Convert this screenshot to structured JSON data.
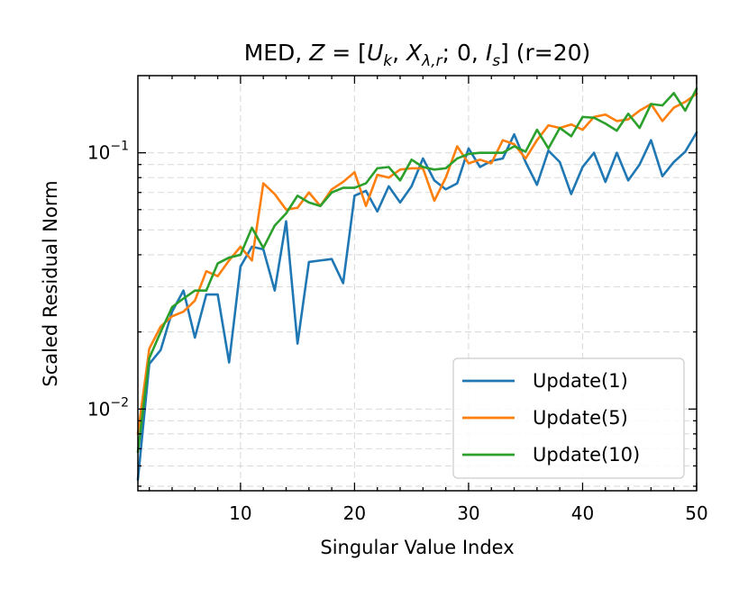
{
  "chart_data": {
    "type": "line",
    "title": "MED, Z = [U_k, X_{λ,r}; 0, I_s] (r=20)",
    "title_parts": {
      "prefix": "MED, ",
      "z": "Z",
      "equals": " = [",
      "u": "U",
      "u_sub": "k",
      "comma1": ", ",
      "x": "X",
      "x_sub": "λ,r",
      "semi": "; 0, ",
      "i": "I",
      "i_sub": "s",
      "suffix": "] (r=20)"
    },
    "xlabel": "Singular Value Index",
    "ylabel": "Scaled Residual Norm",
    "xlim": [
      1,
      50
    ],
    "ylim": [
      0.0048,
      0.2
    ],
    "yscale": "log",
    "xticks": [
      10,
      20,
      30,
      40,
      50
    ],
    "xtick_labels": [
      "10",
      "20",
      "30",
      "40",
      "50"
    ],
    "yticks": [
      {
        "value": 0.01,
        "base": "10",
        "exp": "−2"
      },
      {
        "value": 0.1,
        "base": "10",
        "exp": "−1"
      }
    ],
    "grid": true,
    "legend": "lower-right",
    "x": [
      1,
      2,
      3,
      4,
      5,
      6,
      7,
      8,
      9,
      10,
      11,
      12,
      13,
      14,
      15,
      16,
      17,
      18,
      19,
      20,
      21,
      22,
      23,
      24,
      25,
      26,
      27,
      28,
      29,
      30,
      31,
      32,
      33,
      34,
      35,
      36,
      37,
      38,
      39,
      40,
      41,
      42,
      43,
      44,
      45,
      46,
      47,
      48,
      49,
      50
    ],
    "series": [
      {
        "name": "Update(1)",
        "color": "#1f77b4",
        "values": [
          0.0053,
          0.015,
          0.017,
          0.024,
          0.029,
          0.019,
          0.028,
          0.028,
          0.0152,
          0.036,
          0.043,
          0.042,
          0.029,
          0.054,
          0.018,
          0.0375,
          0.038,
          0.0385,
          0.031,
          0.068,
          0.071,
          0.059,
          0.074,
          0.064,
          0.074,
          0.095,
          0.078,
          0.072,
          0.076,
          0.104,
          0.088,
          0.093,
          0.095,
          0.118,
          0.092,
          0.075,
          0.102,
          0.092,
          0.069,
          0.088,
          0.1,
          0.077,
          0.1,
          0.078,
          0.09,
          0.112,
          0.081,
          0.092,
          0.101,
          0.12
        ]
      },
      {
        "name": "Update(5)",
        "color": "#ff7f0e",
        "values": [
          0.008,
          0.0172,
          0.021,
          0.023,
          0.024,
          0.0265,
          0.0345,
          0.033,
          0.038,
          0.043,
          0.038,
          0.076,
          0.069,
          0.06,
          0.061,
          0.07,
          0.062,
          0.072,
          0.077,
          0.084,
          0.062,
          0.082,
          0.08,
          0.086,
          0.087,
          0.087,
          0.065,
          0.08,
          0.106,
          0.091,
          0.094,
          0.091,
          0.112,
          0.108,
          0.095,
          0.112,
          0.128,
          0.125,
          0.129,
          0.123,
          0.138,
          0.141,
          0.133,
          0.135,
          0.146,
          0.155,
          0.133,
          0.15,
          0.158,
          0.17
        ]
      },
      {
        "name": "Update(10)",
        "color": "#2ca02c",
        "values": [
          0.0068,
          0.0158,
          0.02,
          0.025,
          0.027,
          0.029,
          0.029,
          0.037,
          0.039,
          0.04,
          0.051,
          0.0425,
          0.052,
          0.058,
          0.068,
          0.064,
          0.062,
          0.07,
          0.073,
          0.073,
          0.076,
          0.087,
          0.088,
          0.078,
          0.094,
          0.088,
          0.086,
          0.087,
          0.095,
          0.099,
          0.1,
          0.1,
          0.1,
          0.106,
          0.101,
          0.123,
          0.104,
          0.125,
          0.116,
          0.138,
          0.137,
          0.13,
          0.122,
          0.142,
          0.125,
          0.155,
          0.153,
          0.171,
          0.146,
          0.178
        ]
      }
    ]
  }
}
